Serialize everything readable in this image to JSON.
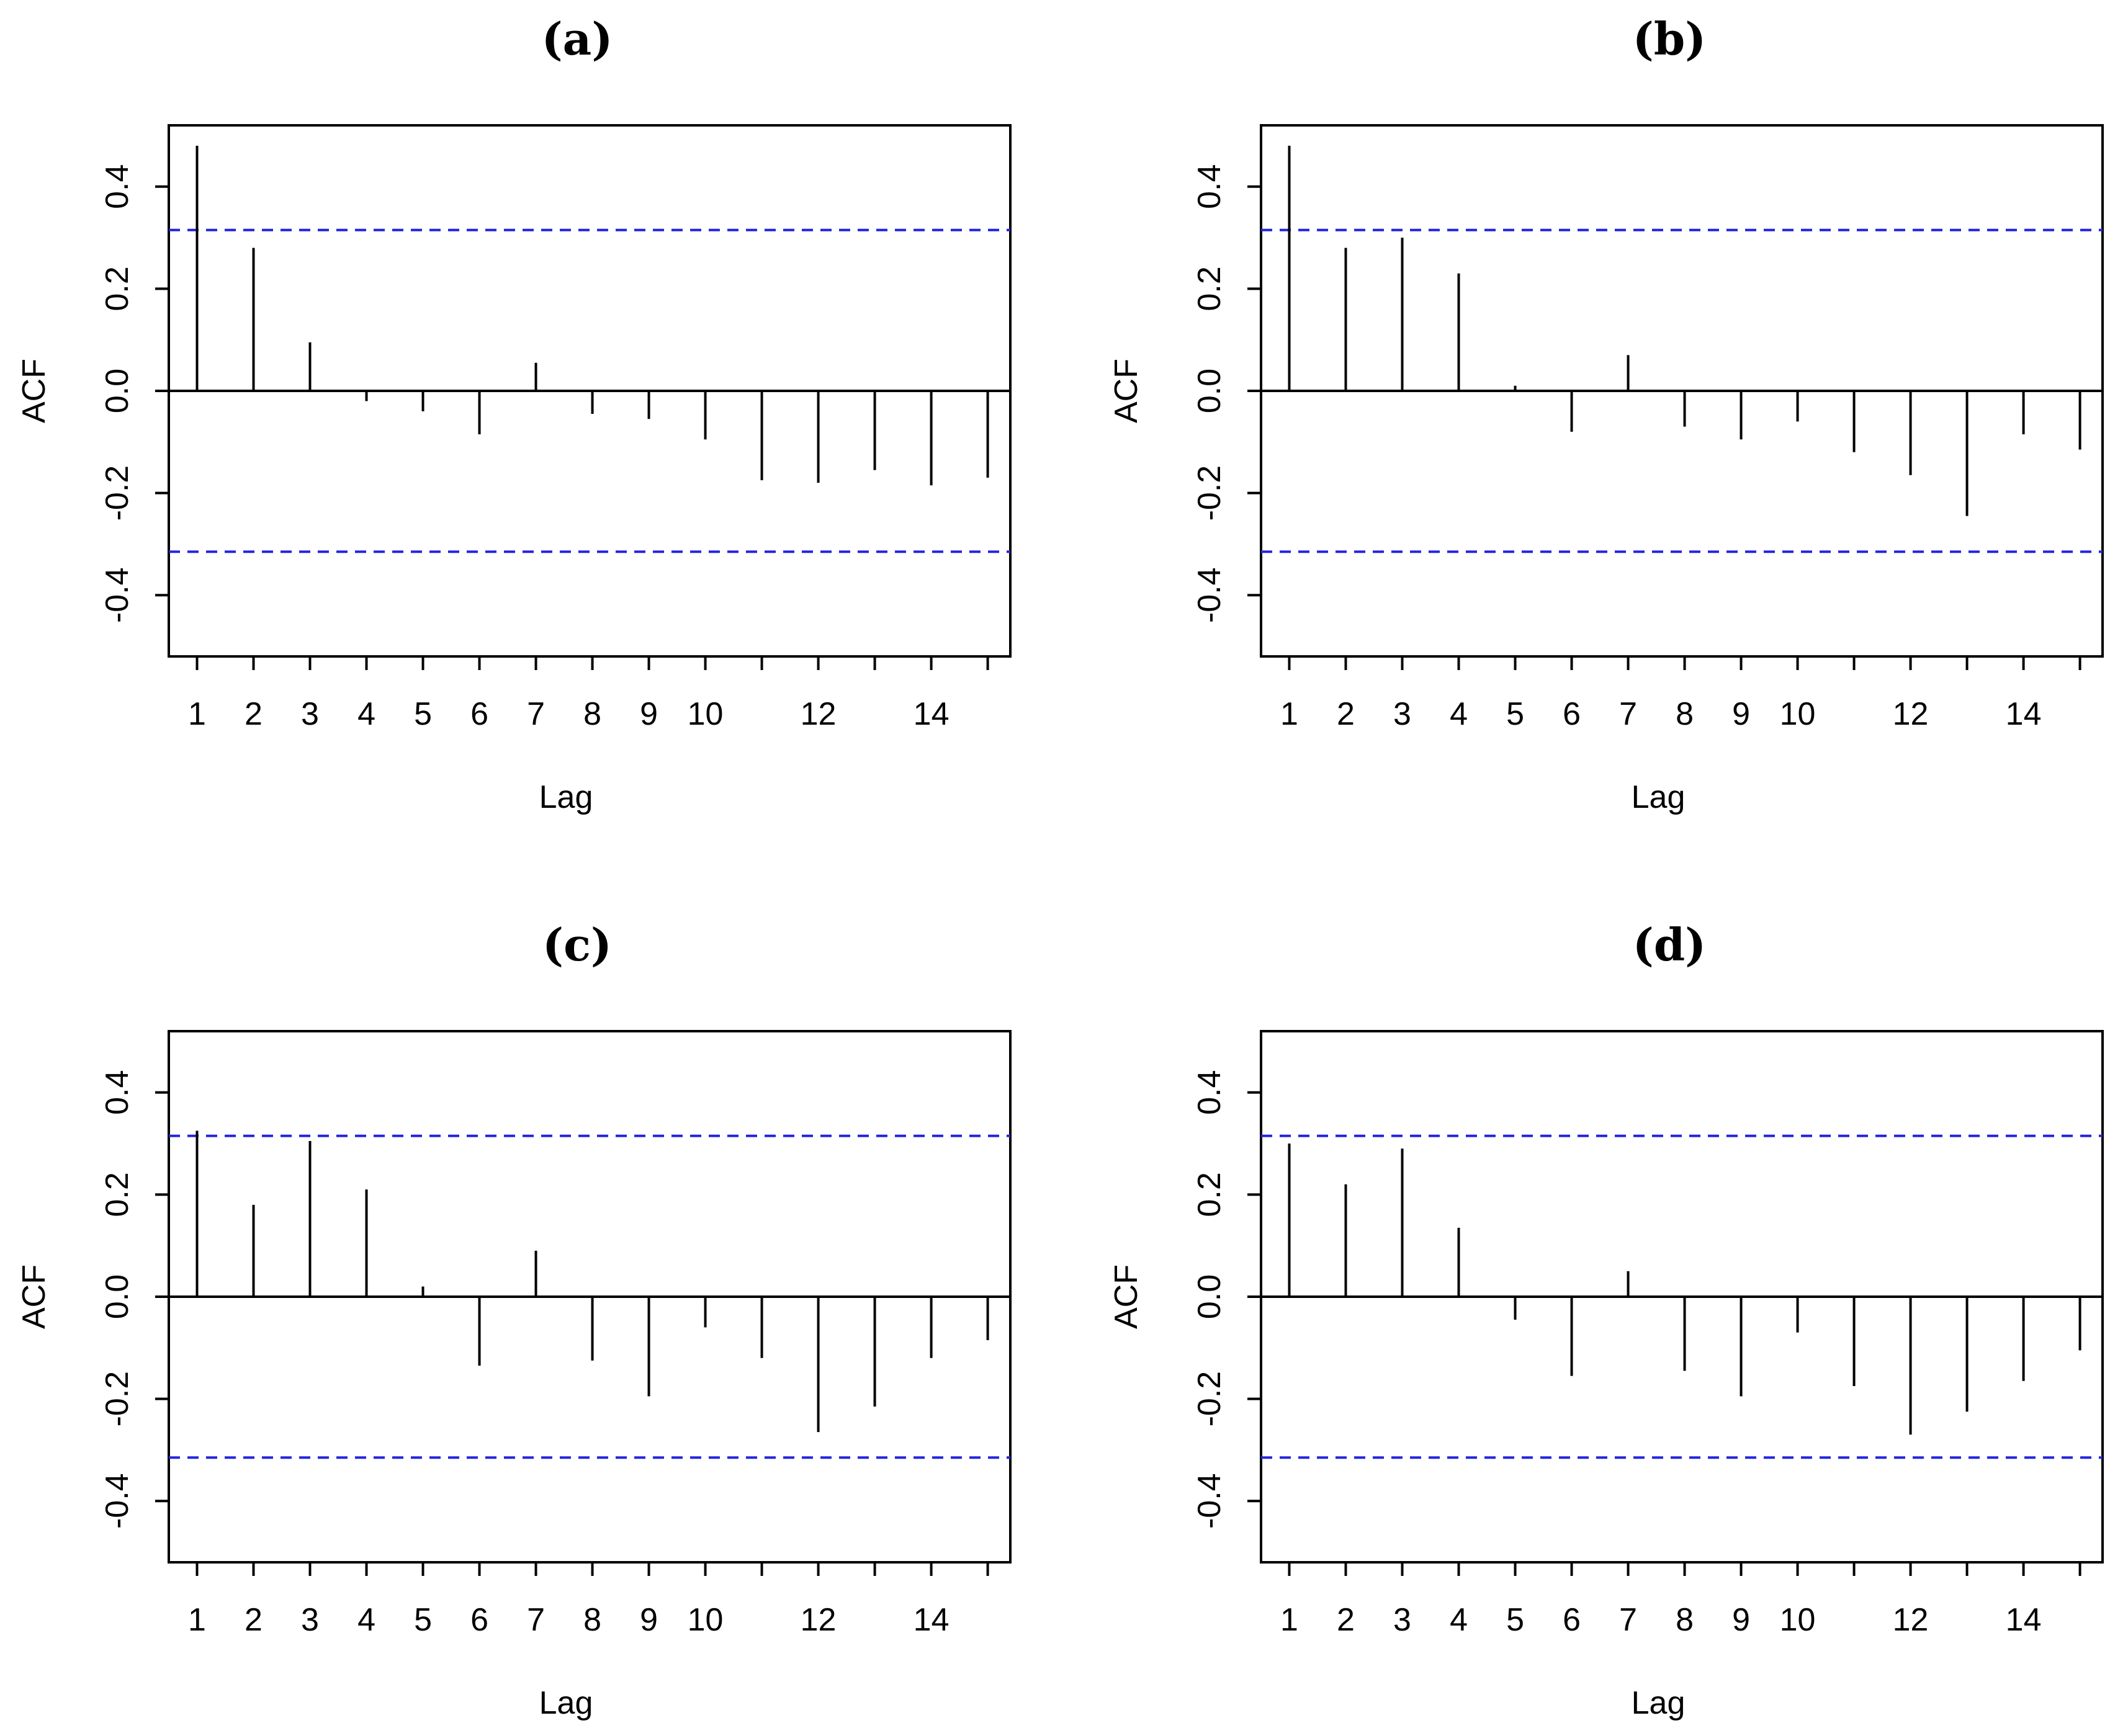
{
  "figure": {
    "ci_color": "#2424e0",
    "bar_color": "#000000"
  },
  "chart_data": [
    {
      "type": "bar",
      "panel": "a",
      "title": "(a)",
      "xlabel": "Lag",
      "ylabel": "ACF",
      "lags": [
        1,
        2,
        3,
        4,
        5,
        6,
        7,
        8,
        9,
        10,
        11,
        12,
        13,
        14,
        15
      ],
      "values": [
        0.48,
        0.28,
        0.095,
        -0.02,
        -0.04,
        -0.085,
        0.055,
        -0.045,
        -0.055,
        -0.095,
        -0.175,
        -0.18,
        -0.155,
        -0.185,
        -0.17
      ],
      "ci": 0.315,
      "xlim": [
        0.5,
        15.4
      ],
      "ylim": [
        -0.52,
        0.52
      ],
      "yticks": [
        -0.4,
        -0.2,
        0.0,
        0.2,
        0.4
      ],
      "ytick_labels": [
        "-0.4",
        "-0.2",
        "0.0",
        "0.2",
        "0.4"
      ],
      "xticks": [
        1,
        2,
        3,
        4,
        5,
        6,
        7,
        8,
        9,
        10,
        11,
        12,
        13,
        14,
        15
      ],
      "xtick_labels": [
        "1",
        "2",
        "3",
        "4",
        "5",
        "6",
        "7",
        "8",
        "9",
        "10",
        "",
        "12",
        "",
        "14",
        ""
      ]
    },
    {
      "type": "bar",
      "panel": "b",
      "title": "(b)",
      "xlabel": "Lag",
      "ylabel": "ACF",
      "lags": [
        1,
        2,
        3,
        4,
        5,
        6,
        7,
        8,
        9,
        10,
        11,
        12,
        13,
        14,
        15
      ],
      "values": [
        0.48,
        0.28,
        0.3,
        0.23,
        0.01,
        -0.08,
        0.07,
        -0.07,
        -0.095,
        -0.06,
        -0.12,
        -0.165,
        -0.245,
        -0.085,
        -0.115
      ],
      "ci": 0.315,
      "xlim": [
        0.5,
        15.4
      ],
      "ylim": [
        -0.52,
        0.52
      ],
      "yticks": [
        -0.4,
        -0.2,
        0.0,
        0.2,
        0.4
      ],
      "ytick_labels": [
        "-0.4",
        "-0.2",
        "0.0",
        "0.2",
        "0.4"
      ],
      "xticks": [
        1,
        2,
        3,
        4,
        5,
        6,
        7,
        8,
        9,
        10,
        11,
        12,
        13,
        14,
        15
      ],
      "xtick_labels": [
        "1",
        "2",
        "3",
        "4",
        "5",
        "6",
        "7",
        "8",
        "9",
        "10",
        "",
        "12",
        "",
        "14",
        ""
      ]
    },
    {
      "type": "bar",
      "panel": "c",
      "title": "(c)",
      "xlabel": "Lag",
      "ylabel": "ACF",
      "lags": [
        1,
        2,
        3,
        4,
        5,
        6,
        7,
        8,
        9,
        10,
        11,
        12,
        13,
        14,
        15
      ],
      "values": [
        0.325,
        0.18,
        0.305,
        0.21,
        0.02,
        -0.135,
        0.09,
        -0.125,
        -0.195,
        -0.06,
        -0.12,
        -0.265,
        -0.215,
        -0.12,
        -0.085
      ],
      "ci": 0.315,
      "xlim": [
        0.5,
        15.4
      ],
      "ylim": [
        -0.52,
        0.52
      ],
      "yticks": [
        -0.4,
        -0.2,
        0.0,
        0.2,
        0.4
      ],
      "ytick_labels": [
        "-0.4",
        "-0.2",
        "0.0",
        "0.2",
        "0.4"
      ],
      "xticks": [
        1,
        2,
        3,
        4,
        5,
        6,
        7,
        8,
        9,
        10,
        11,
        12,
        13,
        14,
        15
      ],
      "xtick_labels": [
        "1",
        "2",
        "3",
        "4",
        "5",
        "6",
        "7",
        "8",
        "9",
        "10",
        "",
        "12",
        "",
        "14",
        ""
      ]
    },
    {
      "type": "bar",
      "panel": "d",
      "title": "(d)",
      "xlabel": "Lag",
      "ylabel": "ACF",
      "lags": [
        1,
        2,
        3,
        4,
        5,
        6,
        7,
        8,
        9,
        10,
        11,
        12,
        13,
        14,
        15
      ],
      "values": [
        0.3,
        0.22,
        0.29,
        0.135,
        -0.045,
        -0.155,
        0.05,
        -0.145,
        -0.195,
        -0.07,
        -0.175,
        -0.27,
        -0.225,
        -0.165,
        -0.105
      ],
      "ci": 0.315,
      "xlim": [
        0.5,
        15.4
      ],
      "ylim": [
        -0.52,
        0.52
      ],
      "yticks": [
        -0.4,
        -0.2,
        0.0,
        0.2,
        0.4
      ],
      "ytick_labels": [
        "-0.4",
        "-0.2",
        "0.0",
        "0.2",
        "0.4"
      ],
      "xticks": [
        1,
        2,
        3,
        4,
        5,
        6,
        7,
        8,
        9,
        10,
        11,
        12,
        13,
        14,
        15
      ],
      "xtick_labels": [
        "1",
        "2",
        "3",
        "4",
        "5",
        "6",
        "7",
        "8",
        "9",
        "10",
        "",
        "12",
        "",
        "14",
        ""
      ]
    }
  ]
}
